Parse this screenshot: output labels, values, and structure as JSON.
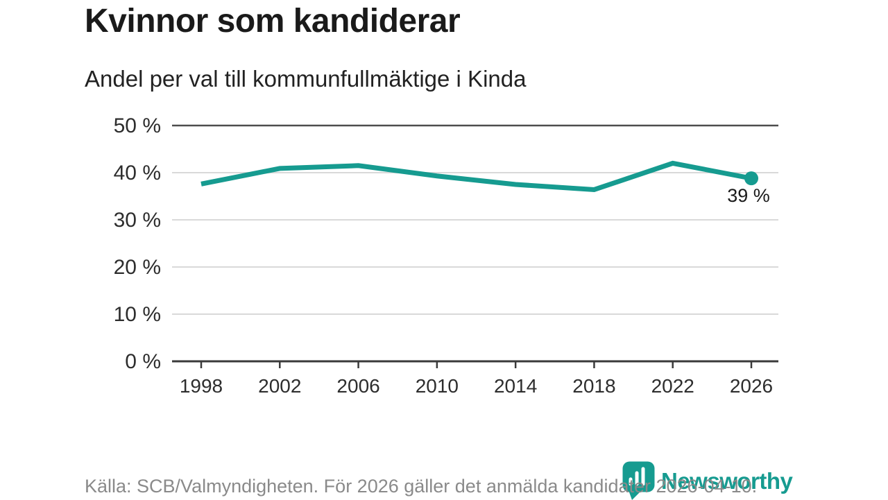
{
  "header": {
    "title": "Kvinnor som kandiderar",
    "subtitle": "Andel per val till kommunfullmäktige i Kinda"
  },
  "footer": {
    "source": "Källa: SCB/Valmyndigheten. För 2026 gäller det anmälda kandidater 2026-04-10.",
    "logo_text": "Newsworthy"
  },
  "colors": {
    "accent": "#169b90",
    "grid_light": "#d9d9d9",
    "grid_dark": "#4d4d4d",
    "axis": "#3a3a3a",
    "tick_label": "#2d2d2d",
    "end_label": "#1a1a1a",
    "source_text": "#8a8a8a"
  },
  "chart_data": {
    "type": "line",
    "title": "Kvinnor som kandiderar",
    "subtitle": "Andel per val till kommunfullmäktige i Kinda",
    "x": [
      1998,
      2002,
      2006,
      2010,
      2014,
      2018,
      2022,
      2026
    ],
    "values": [
      37.6,
      40.9,
      41.5,
      39.3,
      37.5,
      36.4,
      42.0,
      38.8
    ],
    "end_label": "39 %",
    "ylim": [
      0,
      50
    ],
    "y_ticks": [
      0,
      10,
      20,
      30,
      40,
      50
    ],
    "y_tick_labels": [
      "0 %",
      "10 %",
      "20 %",
      "30 %",
      "40 %",
      "50 %"
    ],
    "grid": true,
    "legend": false,
    "source": "Källa: SCB/Valmyndigheten. För 2026 gäller det anmälda kandidater 2026-04-10."
  }
}
